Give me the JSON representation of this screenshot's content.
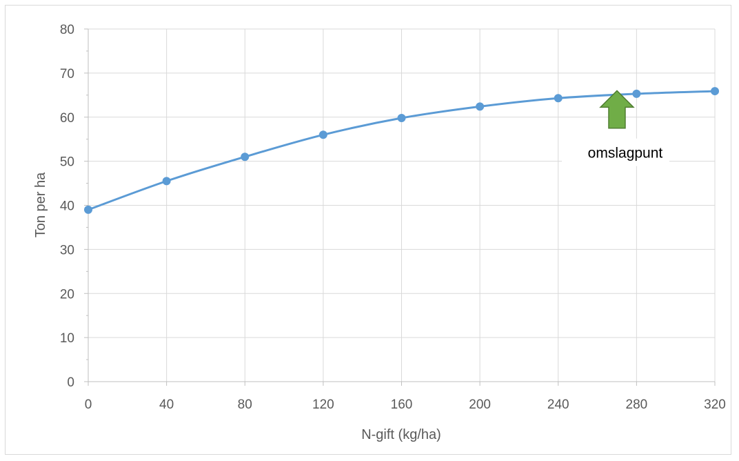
{
  "chart_data": {
    "type": "line",
    "title": "",
    "xlabel": "N-gift (kg/ha)",
    "ylabel": "Ton per ha",
    "x": [
      0,
      40,
      80,
      120,
      160,
      200,
      240,
      280,
      320
    ],
    "series": [
      {
        "values": [
          39,
          45.5,
          51,
          56,
          59.8,
          62.4,
          64.3,
          65.3,
          65.9
        ],
        "color": "#5b9bd5"
      }
    ],
    "xlim": [
      0,
      320
    ],
    "ylim": [
      0,
      80
    ],
    "xticks": [
      0,
      40,
      80,
      120,
      160,
      200,
      240,
      280,
      320
    ],
    "yticks": [
      0,
      10,
      20,
      30,
      40,
      50,
      60,
      70,
      80
    ],
    "grid": true,
    "smooth": true,
    "annotations": [
      {
        "text": "omslagpunt",
        "arrow_x": 270,
        "arrow_tip_y": 66,
        "arrow_base_y": 57.5,
        "color": "#70ad47",
        "icon": "up-arrow-icon"
      }
    ]
  }
}
